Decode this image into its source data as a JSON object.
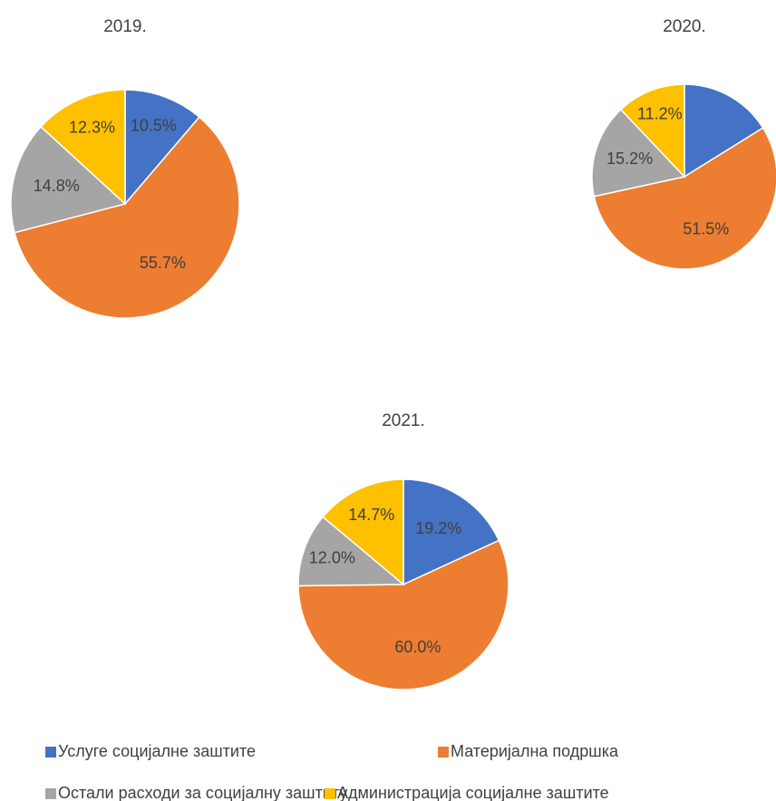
{
  "chart_data": [
    {
      "type": "pie",
      "title": "2019.",
      "values": [
        10.5,
        55.7,
        14.8,
        12.3
      ],
      "value_labels": [
        "10.5%",
        "55.7%",
        "14.8%",
        "12.3%"
      ]
    },
    {
      "type": "pie",
      "title": "2020.",
      "values": [
        15,
        51.5,
        15.2,
        11.2
      ],
      "value_labels": [
        null,
        "51.5%",
        "15.2%",
        "11.2%"
      ]
    },
    {
      "type": "pie",
      "title": "2021.",
      "values": [
        19.2,
        60.0,
        12.0,
        14.7
      ],
      "value_labels": [
        "19.2%",
        "60.0%",
        "12.0%",
        "14.7%"
      ]
    }
  ],
  "legend": {
    "labels": [
      "Услуге социјалне заштите",
      "Материјална подршка",
      "Остали расходи за социјалну заштиту",
      "Администрација социјалне заштите"
    ],
    "colors": [
      "#4472c4",
      "#ed7d31",
      "#a5a5a5",
      "#ffc000"
    ]
  }
}
